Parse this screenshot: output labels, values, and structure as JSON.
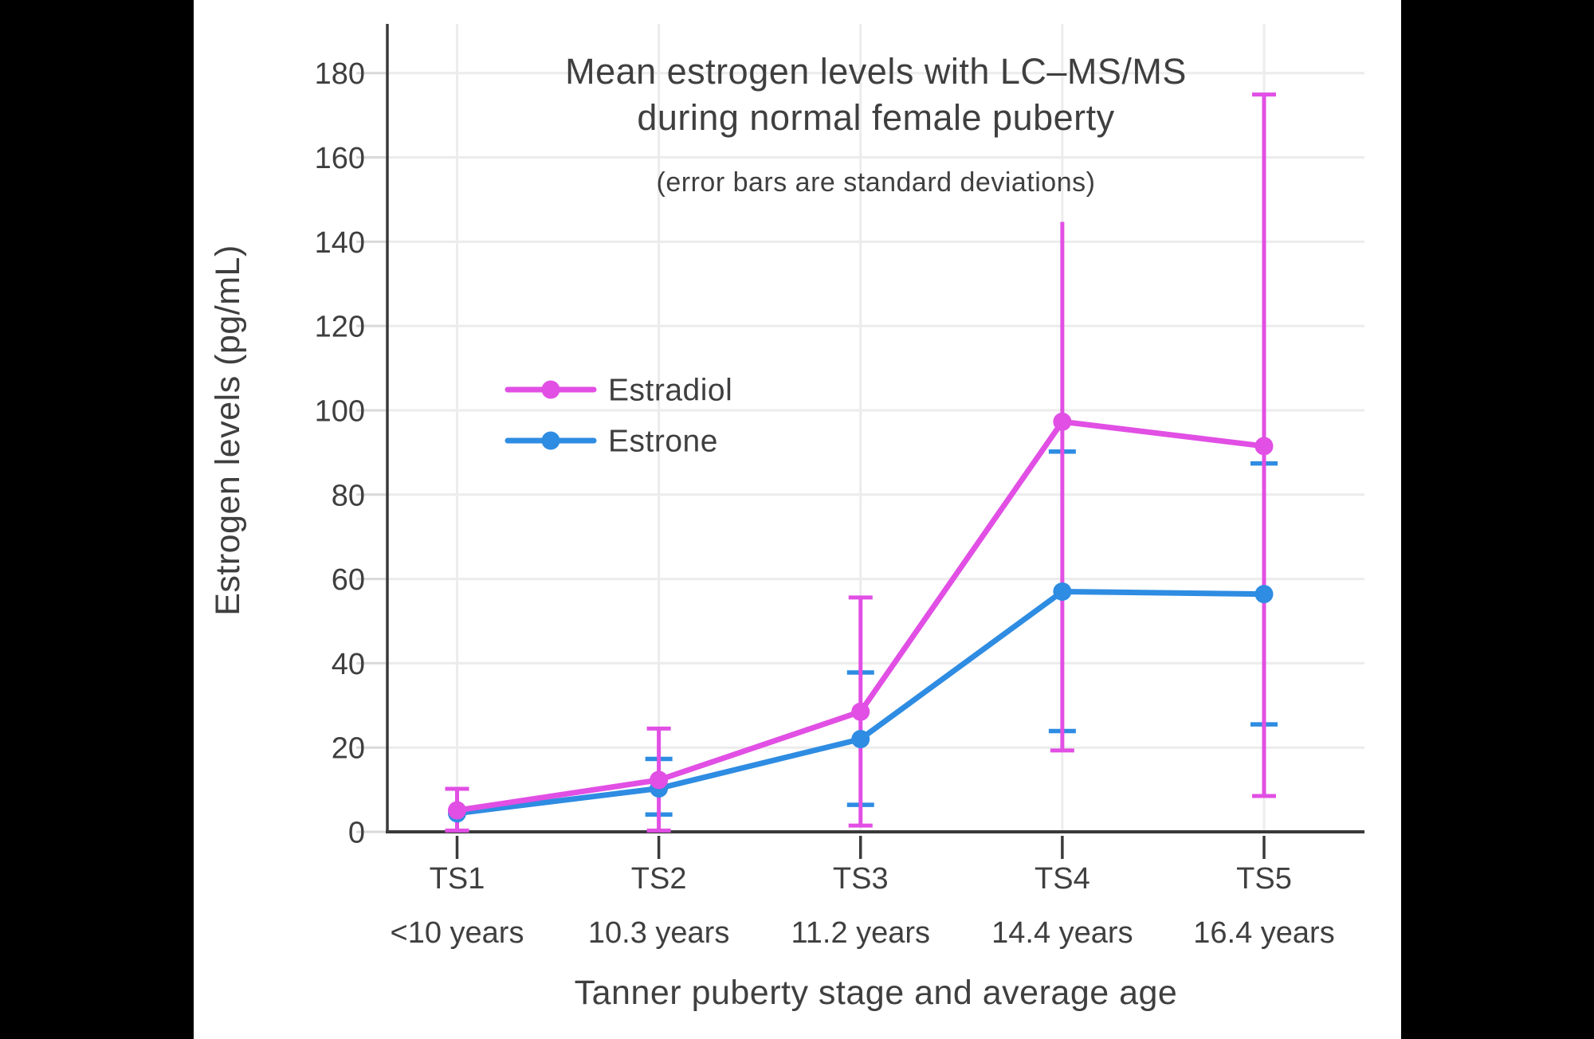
{
  "page": {
    "letterbox_color": "#000000",
    "canvas_color": "#FFFFFF"
  },
  "colors": {
    "axis": "#3A3A3A",
    "grid": "#ECECEC",
    "tick_light": "#D9D9D9",
    "text": "#3F3F3F",
    "estradiol": "#E14FE4",
    "estrone": "#2E8CE2"
  },
  "chart_data": {
    "type": "line",
    "title": "Mean estrogen levels with LC–MS/MS during normal female puberty",
    "title_lines": [
      "Mean estrogen levels with LC–MS/MS",
      "during normal female puberty"
    ],
    "subtitle": "(error bars are standard deviations)",
    "xlabel": "Tanner puberty stage and average age",
    "ylabel": "Estrogen levels (pg/mL)",
    "x_categories": [
      {
        "stage": "TS1",
        "age": "<10 years"
      },
      {
        "stage": "TS2",
        "age": "10.3 years"
      },
      {
        "stage": "TS3",
        "age": "11.2 years"
      },
      {
        "stage": "TS4",
        "age": "14.4 years"
      },
      {
        "stage": "TS5",
        "age": "16.4 years"
      }
    ],
    "ylim": [
      0,
      190
    ],
    "yticks": [
      0,
      20,
      40,
      60,
      80,
      100,
      120,
      140,
      160,
      180
    ],
    "grid": true,
    "legend_position": "inside-upper-left",
    "legend_order": [
      "Estradiol",
      "Estrone"
    ],
    "series": [
      {
        "name": "Estradiol",
        "color_key": "estradiol",
        "values": [
          5.1,
          12.3,
          28.5,
          97.3,
          91.5
        ],
        "err_low": [
          0.3,
          0.3,
          1.5,
          19.3,
          8.5
        ],
        "err_high": [
          10.2,
          24.5,
          55.6,
          144.7,
          174.9
        ],
        "cap_top": [
          true,
          true,
          true,
          false,
          true
        ],
        "cap_bottom": [
          true,
          true,
          true,
          true,
          true
        ]
      },
      {
        "name": "Estrone",
        "color_key": "estrone",
        "values": [
          4.4,
          10.3,
          22.0,
          57.0,
          56.4
        ],
        "err_low": [
          null,
          4.1,
          6.4,
          23.9,
          25.5
        ],
        "err_high": [
          null,
          17.3,
          37.8,
          90.2,
          87.4
        ],
        "cap_top": [
          false,
          true,
          true,
          true,
          true
        ],
        "cap_bottom": [
          false,
          true,
          true,
          true,
          true
        ]
      }
    ]
  }
}
